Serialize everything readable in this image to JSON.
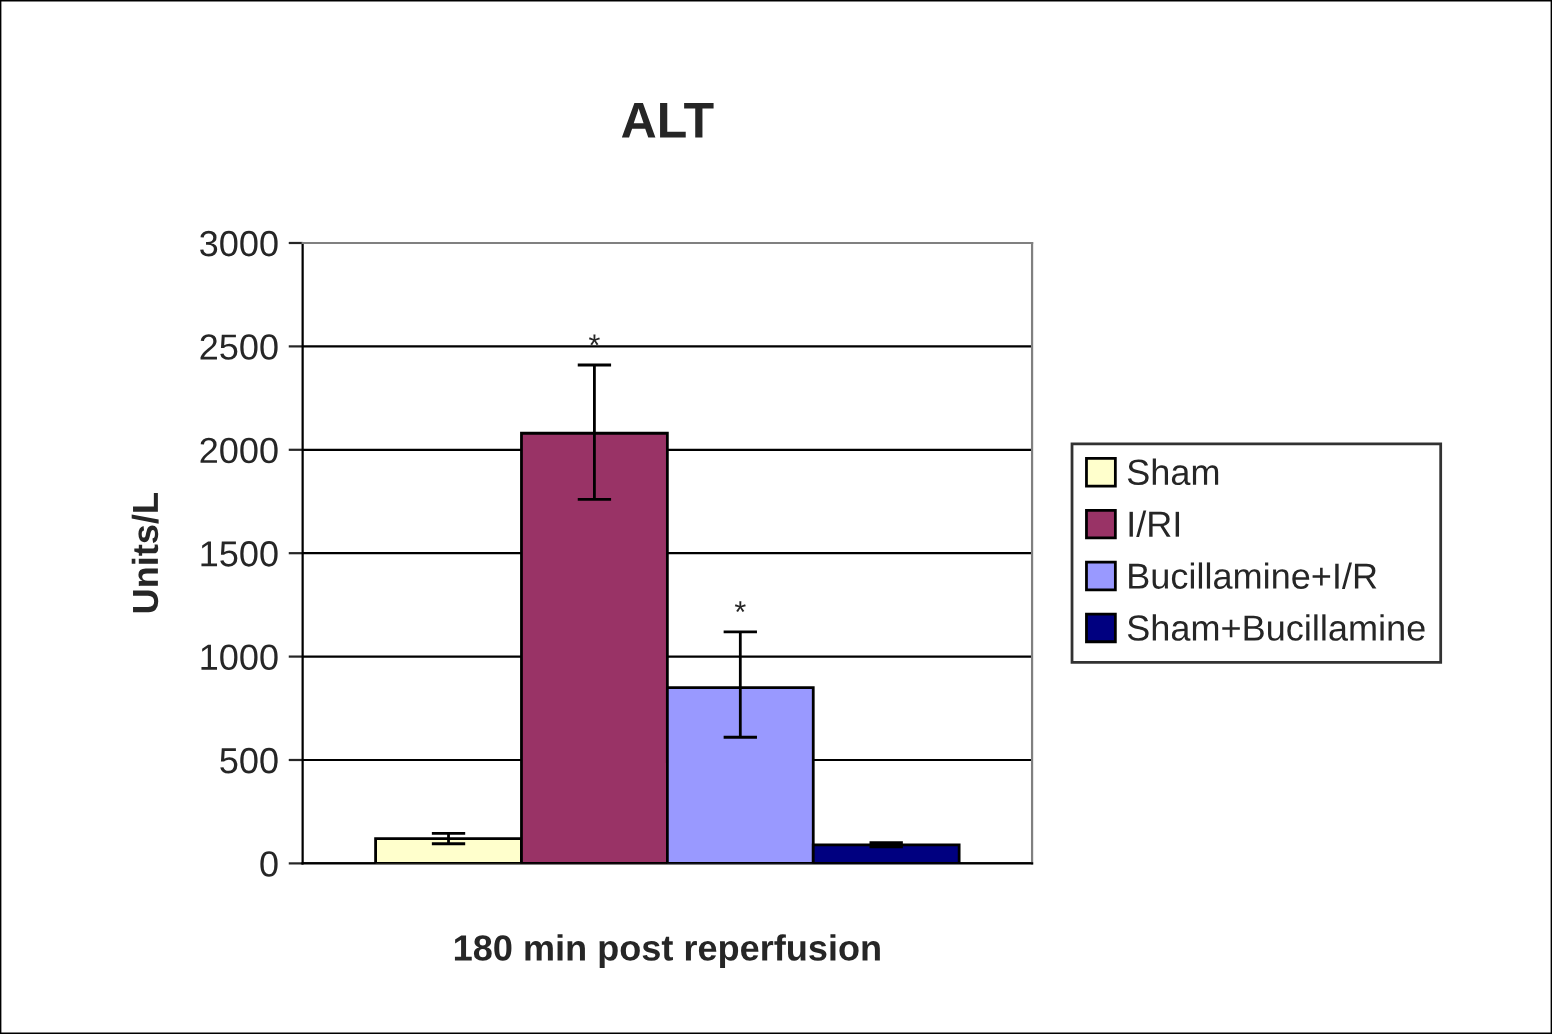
{
  "chart_data": {
    "type": "bar",
    "title": "ALT",
    "xlabel": "180 min post reperfusion",
    "ylabel": "Units/L",
    "categories": [
      null
    ],
    "series": [
      {
        "name": "Sham",
        "color": "#ffffcc",
        "values": [
          120
        ],
        "errors": [
          25
        ]
      },
      {
        "name": "I/RI",
        "color": "#993366",
        "values": [
          2080
        ],
        "errors": [
          [
            1760,
            2410
          ]
        ],
        "value_labels": [
          "*"
        ]
      },
      {
        "name": "Bucillamine+I/R",
        "color": "#9999ff",
        "values": [
          850
        ],
        "errors": [
          [
            610,
            1120
          ]
        ],
        "value_labels": [
          "*"
        ]
      },
      {
        "name": "Sham+Bucillamine",
        "color": "#000080",
        "values": [
          90
        ],
        "errors": [
          10
        ]
      }
    ],
    "ylim": [
      0,
      3000
    ],
    "yticks": [
      0,
      500,
      1000,
      1500,
      2000,
      2500,
      3000
    ],
    "grid": "y",
    "legend": "right"
  }
}
